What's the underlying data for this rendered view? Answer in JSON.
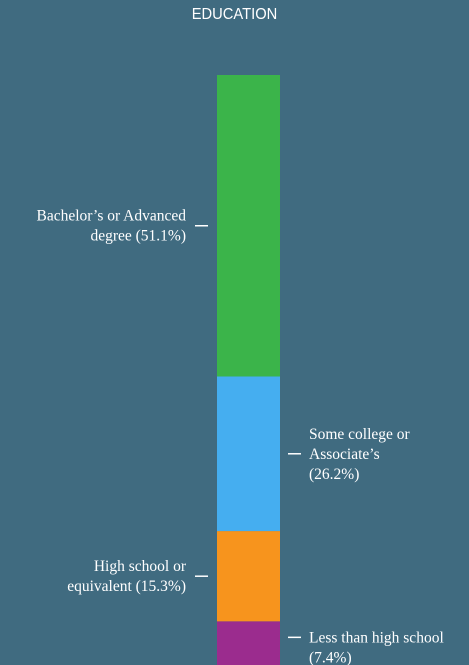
{
  "chart_data": {
    "type": "bar",
    "stacked": true,
    "title": "EDUCATION",
    "categories": [
      "Less than high school",
      "High school or equivalent",
      "Some college or Associate’s",
      "Bachelor’s or Advanced degree"
    ],
    "values": [
      7.4,
      15.3,
      26.2,
      51.1
    ],
    "colors": [
      "#9b2c8e",
      "#f7941d",
      "#45aef0",
      "#3bb44a"
    ],
    "segment_labels": [
      [
        "Less than high school",
        "(7.4%)"
      ],
      [
        "High school or",
        "equivalent (15.3%)"
      ],
      [
        "Some college or",
        "Associate’s",
        "(26.2%)"
      ],
      [
        "Bachelor’s or Advanced",
        "degree (51.1%)"
      ]
    ],
    "label_sides": [
      "right",
      "left",
      "right",
      "left"
    ]
  }
}
